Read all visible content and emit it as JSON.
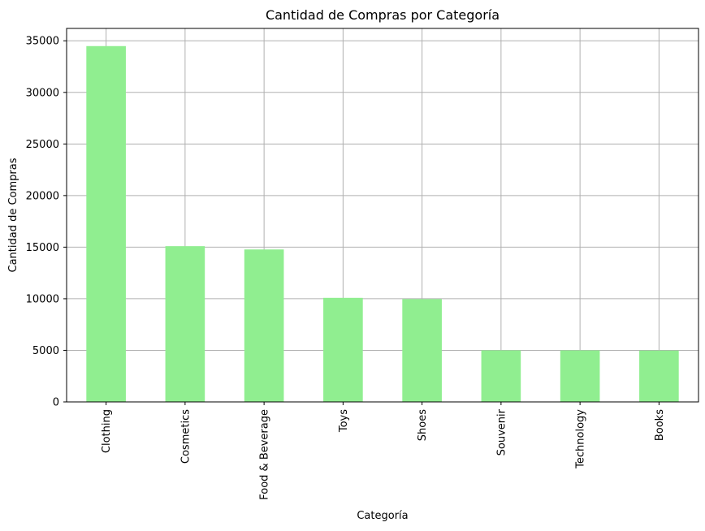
{
  "chart_data": {
    "type": "bar",
    "title": "Cantidad de Compras por Categoría",
    "xlabel": "Categoría",
    "ylabel": "Cantidad de Compras",
    "categories": [
      "Clothing",
      "Cosmetics",
      "Food & Beverage",
      "Toys",
      "Shoes",
      "Souvenir",
      "Technology",
      "Books"
    ],
    "values": [
      34487,
      15097,
      14776,
      10087,
      9967,
      4999,
      4996,
      4981
    ],
    "ylim": [
      0,
      36200
    ],
    "yticks": [
      0,
      5000,
      10000,
      15000,
      20000,
      25000,
      30000,
      35000
    ],
    "grid": true,
    "bar_color": "#90ee90",
    "grid_color": "#b0b0b0"
  }
}
